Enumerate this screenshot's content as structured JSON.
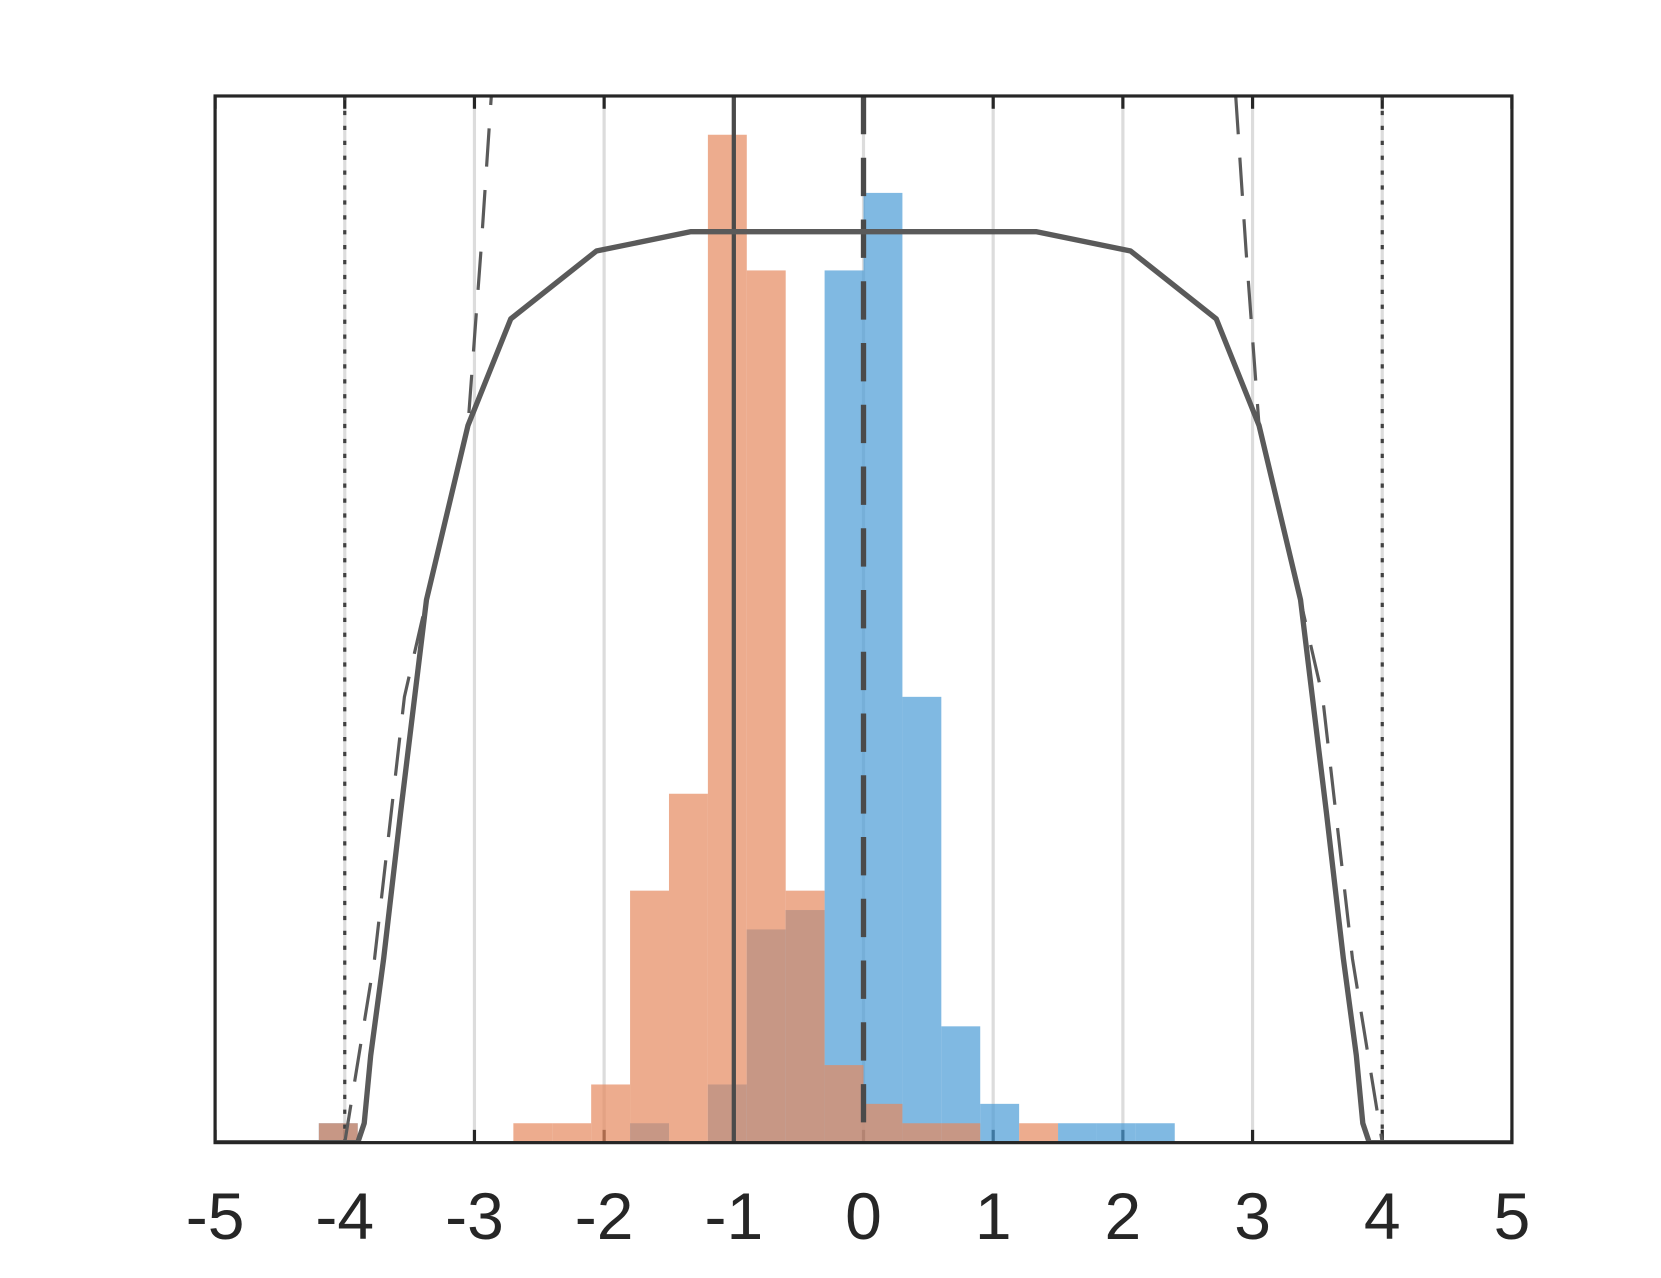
{
  "chart_data": {
    "type": "histogram",
    "bins": [
      -4.2,
      -3.9,
      -3.6,
      -3.3,
      -3.0,
      -2.7,
      -2.4,
      -2.1,
      -1.8,
      -1.5,
      -1.2,
      -0.9,
      -0.6,
      -0.3,
      0,
      0.3,
      0.6,
      0.9,
      1.2,
      1.5,
      1.8,
      2.1,
      2.4
    ],
    "series": [
      {
        "color": "#4a9bd6",
        "values": [
          1,
          0,
          0,
          0,
          0,
          0,
          0,
          0,
          1,
          0,
          3,
          11,
          12,
          45,
          49,
          23,
          6,
          2,
          0,
          1,
          1,
          1
        ]
      },
      {
        "color": "#e6895e",
        "values": [
          1,
          0,
          0,
          0,
          0,
          1,
          1,
          3,
          13,
          18,
          52,
          45,
          13,
          4,
          2,
          1,
          1,
          0,
          1,
          0,
          0,
          0
        ]
      }
    ],
    "lines": [
      {
        "style": "solid",
        "color": "#5a5a5a",
        "x": [
          -5,
          -3.9,
          -3.85,
          -3.8,
          -3.7,
          -3.57,
          -3.37,
          -3.05,
          -2.72,
          -2.06,
          -1.33,
          0,
          1.33,
          2.06,
          2.72,
          3.05,
          3.37,
          3.57,
          3.7,
          3.8,
          3.85,
          3.9,
          5
        ],
        "values": [
          0,
          0,
          1,
          4.5,
          9.5,
          17,
          28,
          37,
          42.5,
          46,
          47,
          47,
          47,
          46,
          42.5,
          37,
          28,
          17,
          9.5,
          4.5,
          1,
          0,
          0
        ]
      },
      {
        "style": "dashed",
        "color": "#5a5a5a",
        "x": [
          -4,
          -3.77,
          -3.54,
          -3.3,
          -3.05,
          -2.95,
          -2.87,
          0,
          2.87,
          2.95,
          3.05,
          3.3,
          3.54,
          3.77,
          4
        ],
        "values": [
          0,
          9.5,
          23,
          30,
          37,
          46,
          54,
          null,
          54,
          46,
          37,
          30,
          23,
          9.5,
          0
        ]
      }
    ],
    "vlines": [
      {
        "x": -1,
        "style": "solid"
      },
      {
        "x": 0,
        "style": "dashed"
      },
      {
        "x": -4,
        "style": "dotted"
      },
      {
        "x": 4,
        "style": "dotted"
      }
    ],
    "xlim": [
      -5,
      5
    ],
    "xticks": [
      -5,
      -4,
      -3,
      -2,
      -1,
      0,
      1,
      2,
      3,
      4,
      5
    ],
    "ylim": [
      0,
      54
    ],
    "grid": true
  }
}
